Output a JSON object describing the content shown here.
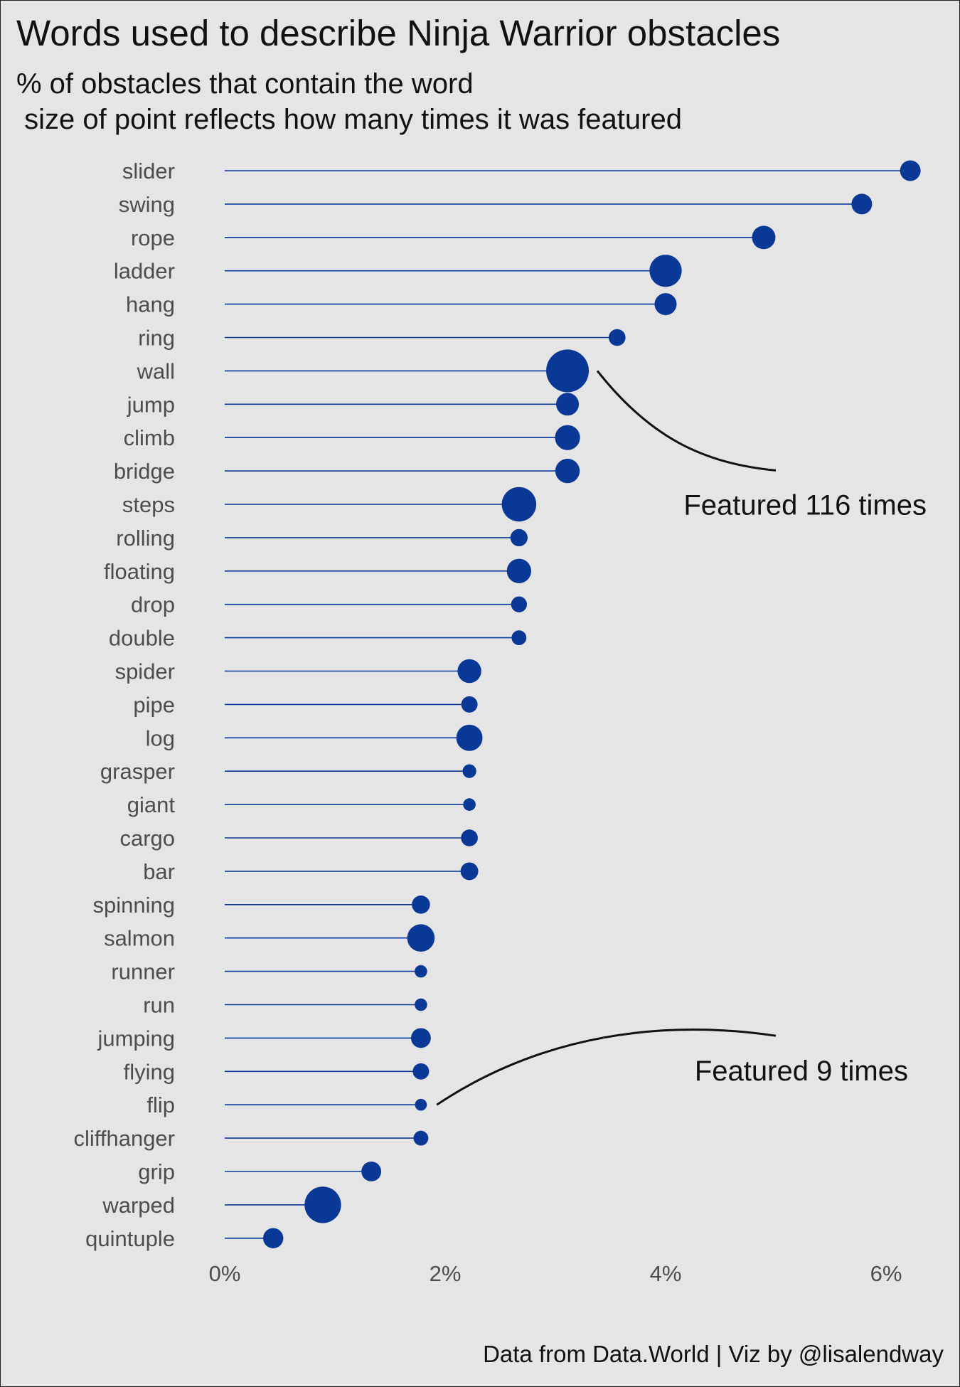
{
  "chart_data": {
    "type": "lollipop",
    "title": "Words used to describe Ninja Warrior obstacles",
    "subtitle": "% of obstacles that contain the word\n size of point reflects how many times it was featured",
    "caption": "Data from Data.World | Viz by @lisalendway",
    "xlabel": "",
    "ylabel": "",
    "xlim": [
      0,
      6.4
    ],
    "x_ticks": [
      {
        "value": 0,
        "label": "0%"
      },
      {
        "value": 2,
        "label": "2%"
      },
      {
        "value": 4,
        "label": "4%"
      },
      {
        "value": 6,
        "label": "6%"
      }
    ],
    "grid": false,
    "point_color": "#0a3896",
    "line_color": "#0a3896",
    "size_legend": "none",
    "points": [
      {
        "word": "slider",
        "pct": 6.22,
        "featured": 27
      },
      {
        "word": "swing",
        "pct": 5.78,
        "featured": 27
      },
      {
        "word": "rope",
        "pct": 4.89,
        "featured": 35
      },
      {
        "word": "ladder",
        "pct": 4.0,
        "featured": 66
      },
      {
        "word": "hang",
        "pct": 4.0,
        "featured": 31
      },
      {
        "word": "ring",
        "pct": 3.56,
        "featured": 18
      },
      {
        "word": "wall",
        "pct": 3.11,
        "featured": 116
      },
      {
        "word": "jump",
        "pct": 3.11,
        "featured": 33
      },
      {
        "word": "climb",
        "pct": 3.11,
        "featured": 40
      },
      {
        "word": "bridge",
        "pct": 3.11,
        "featured": 38
      },
      {
        "word": "steps",
        "pct": 2.67,
        "featured": 76
      },
      {
        "word": "rolling",
        "pct": 2.67,
        "featured": 19
      },
      {
        "word": "floating",
        "pct": 2.67,
        "featured": 38
      },
      {
        "word": "drop",
        "pct": 2.67,
        "featured": 16
      },
      {
        "word": "double",
        "pct": 2.67,
        "featured": 14
      },
      {
        "word": "spider",
        "pct": 2.22,
        "featured": 36
      },
      {
        "word": "pipe",
        "pct": 2.22,
        "featured": 17
      },
      {
        "word": "log",
        "pct": 2.22,
        "featured": 44
      },
      {
        "word": "grasper",
        "pct": 2.22,
        "featured": 12
      },
      {
        "word": "giant",
        "pct": 2.22,
        "featured": 10
      },
      {
        "word": "cargo",
        "pct": 2.22,
        "featured": 18
      },
      {
        "word": "bar",
        "pct": 2.22,
        "featured": 20
      },
      {
        "word": "spinning",
        "pct": 1.78,
        "featured": 21
      },
      {
        "word": "salmon",
        "pct": 1.78,
        "featured": 48
      },
      {
        "word": "runner",
        "pct": 1.78,
        "featured": 10
      },
      {
        "word": "run",
        "pct": 1.78,
        "featured": 10
      },
      {
        "word": "jumping",
        "pct": 1.78,
        "featured": 25
      },
      {
        "word": "flying",
        "pct": 1.78,
        "featured": 17
      },
      {
        "word": "flip",
        "pct": 1.78,
        "featured": 9
      },
      {
        "word": "cliffhanger",
        "pct": 1.78,
        "featured": 14
      },
      {
        "word": "grip",
        "pct": 1.33,
        "featured": 25
      },
      {
        "word": "warped",
        "pct": 0.89,
        "featured": 85
      },
      {
        "word": "quintuple",
        "pct": 0.44,
        "featured": 26
      }
    ],
    "annotations": [
      {
        "text": "Featured 116 times",
        "target": "wall"
      },
      {
        "text": "Featured 9 times",
        "target": "flip"
      }
    ]
  }
}
